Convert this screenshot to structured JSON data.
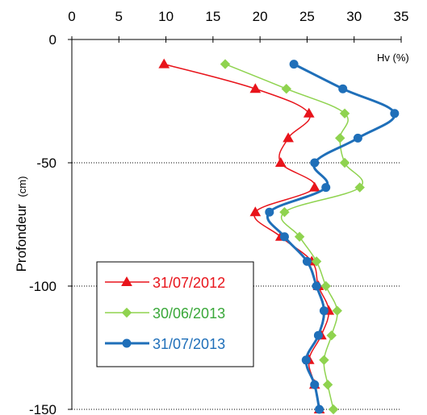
{
  "chart_data": {
    "type": "line",
    "xlabel": "Hv (%)",
    "ylabel": "Profondeur",
    "ylabel_unit": "(cm)",
    "xlim": [
      0,
      35
    ],
    "ylim": [
      -150,
      0
    ],
    "x_ticks": [
      0,
      5,
      10,
      15,
      20,
      25,
      30,
      35
    ],
    "y_ticks": [
      0,
      -50,
      -100,
      -150
    ],
    "x_axis_position": "top",
    "grid": "dotted horizontal lines at y ticks",
    "legend_position": "bottom-left",
    "series": [
      {
        "name": "31/07/2012",
        "color": "#e8141b",
        "marker": "triangle",
        "points": [
          [
            9.8,
            -10
          ],
          [
            19.5,
            -20
          ],
          [
            25.2,
            -30
          ],
          [
            23.0,
            -40
          ],
          [
            22.2,
            -50
          ],
          [
            25.8,
            -60
          ],
          [
            19.5,
            -70
          ],
          [
            22.2,
            -80
          ],
          [
            25.5,
            -90
          ],
          [
            26.2,
            -100
          ],
          [
            27.3,
            -110
          ],
          [
            26.5,
            -120
          ],
          [
            25.2,
            -130
          ],
          [
            25.8,
            -140
          ],
          [
            26.3,
            -150
          ]
        ]
      },
      {
        "name": "30/06/2013",
        "color": "#8fd34f",
        "marker": "diamond",
        "points": [
          [
            16.3,
            -10
          ],
          [
            22.8,
            -20
          ],
          [
            29.0,
            -30
          ],
          [
            28.5,
            -40
          ],
          [
            29.0,
            -50
          ],
          [
            30.6,
            -60
          ],
          [
            22.6,
            -70
          ],
          [
            24.2,
            -80
          ],
          [
            26.0,
            -90
          ],
          [
            27.0,
            -100
          ],
          [
            28.2,
            -110
          ],
          [
            27.6,
            -120
          ],
          [
            26.8,
            -130
          ],
          [
            27.2,
            -140
          ],
          [
            27.8,
            -150
          ]
        ]
      },
      {
        "name": "31/07/2013",
        "color": "#1f6fb9",
        "marker": "circle",
        "points": [
          [
            23.6,
            -10
          ],
          [
            28.8,
            -20
          ],
          [
            34.3,
            -30
          ],
          [
            30.4,
            -40
          ],
          [
            25.8,
            -50
          ],
          [
            27.0,
            -60
          ],
          [
            21.0,
            -70
          ],
          [
            22.6,
            -80
          ],
          [
            25.0,
            -90
          ],
          [
            26.0,
            -100
          ],
          [
            26.8,
            -110
          ],
          [
            26.2,
            -120
          ],
          [
            24.9,
            -130
          ],
          [
            25.8,
            -140
          ],
          [
            26.3,
            -150
          ]
        ]
      }
    ]
  }
}
